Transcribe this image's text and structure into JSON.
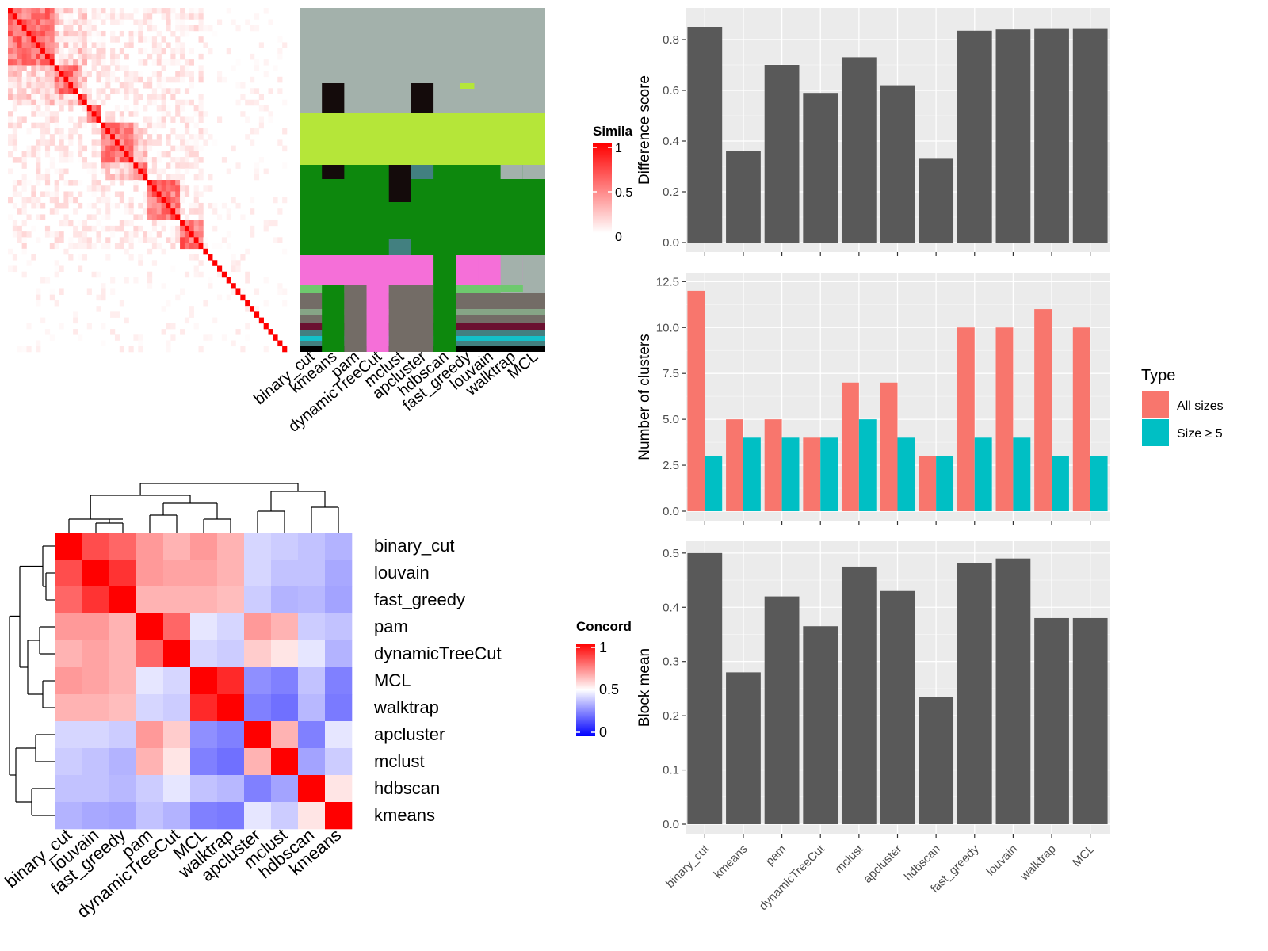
{
  "methods_top": [
    "binary_cut",
    "kmeans",
    "pam",
    "dynamicTreeCut",
    "mclust",
    "apcluster",
    "hdbscan",
    "fast_greedy",
    "louvain",
    "walktrap",
    "MCL"
  ],
  "similarity_legend": {
    "title": "Simila",
    "ticks": [
      "1",
      "0.5",
      "0"
    ]
  },
  "concordance_legend": {
    "title": "Concord",
    "ticks": [
      "1",
      "0.5",
      "0"
    ]
  },
  "concordance": {
    "type": "heatmap",
    "rows": [
      "binary_cut",
      "louvain",
      "fast_greedy",
      "pam",
      "dynamicTreeCut",
      "MCL",
      "walktrap",
      "apcluster",
      "mclust",
      "hdbscan",
      "kmeans"
    ],
    "cols": [
      "binary_cut",
      "louvain",
      "fast_greedy",
      "pam",
      "dynamicTreeCut",
      "MCL",
      "walktrap",
      "apcluster",
      "mclust",
      "hdbscan",
      "kmeans"
    ],
    "values": [
      [
        1.0,
        0.85,
        0.8,
        0.7,
        0.65,
        0.7,
        0.65,
        0.42,
        0.4,
        0.38,
        0.35
      ],
      [
        0.85,
        1.0,
        0.9,
        0.7,
        0.68,
        0.68,
        0.65,
        0.42,
        0.38,
        0.38,
        0.33
      ],
      [
        0.8,
        0.9,
        1.0,
        0.65,
        0.65,
        0.65,
        0.63,
        0.4,
        0.35,
        0.36,
        0.32
      ],
      [
        0.7,
        0.7,
        0.65,
        1.0,
        0.8,
        0.45,
        0.42,
        0.7,
        0.65,
        0.4,
        0.38
      ],
      [
        0.65,
        0.68,
        0.65,
        0.8,
        1.0,
        0.42,
        0.4,
        0.6,
        0.55,
        0.45,
        0.35
      ],
      [
        0.7,
        0.68,
        0.65,
        0.45,
        0.42,
        1.0,
        0.92,
        0.28,
        0.25,
        0.38,
        0.25
      ],
      [
        0.65,
        0.65,
        0.63,
        0.42,
        0.4,
        0.92,
        1.0,
        0.25,
        0.22,
        0.36,
        0.24
      ],
      [
        0.42,
        0.42,
        0.4,
        0.7,
        0.6,
        0.28,
        0.25,
        1.0,
        0.65,
        0.25,
        0.45
      ],
      [
        0.4,
        0.38,
        0.35,
        0.65,
        0.55,
        0.25,
        0.22,
        0.65,
        1.0,
        0.32,
        0.4
      ],
      [
        0.38,
        0.38,
        0.36,
        0.4,
        0.45,
        0.38,
        0.36,
        0.25,
        0.32,
        1.0,
        0.55
      ],
      [
        0.35,
        0.33,
        0.32,
        0.38,
        0.35,
        0.25,
        0.24,
        0.45,
        0.4,
        0.55,
        1.0
      ]
    ]
  },
  "chart_data": [
    {
      "type": "bar",
      "categories": [
        "binary_cut",
        "kmeans",
        "pam",
        "dynamicTreeCut",
        "mclust",
        "apcluster",
        "hdbscan",
        "fast_greedy",
        "louvain",
        "walktrap",
        "MCL"
      ],
      "values": [
        0.85,
        0.36,
        0.7,
        0.59,
        0.73,
        0.62,
        0.33,
        0.835,
        0.84,
        0.845,
        0.845
      ],
      "ylabel": "Difference score",
      "ylim": [
        0,
        0.9
      ],
      "yticks": [
        "0.0",
        "0.2",
        "0.4",
        "0.6",
        "0.8"
      ],
      "color": "#595959"
    },
    {
      "type": "bar",
      "categories": [
        "binary_cut",
        "kmeans",
        "pam",
        "dynamicTreeCut",
        "mclust",
        "apcluster",
        "hdbscan",
        "fast_greedy",
        "louvain",
        "walktrap",
        "MCL"
      ],
      "series": [
        {
          "name": "All sizes",
          "values": [
            12,
            5,
            5,
            4,
            7,
            7,
            3,
            10,
            10,
            11,
            10
          ],
          "color": "#F8766D"
        },
        {
          "name": "Size ≥ 5",
          "values": [
            3,
            4,
            4,
            4,
            5,
            4,
            3,
            4,
            4,
            3,
            3
          ],
          "color": "#00BFC4"
        }
      ],
      "ylabel": "Number of clusters",
      "ylim": [
        0,
        12.6
      ],
      "yticks": [
        "0.0",
        "2.5",
        "5.0",
        "7.5",
        "10.0",
        "12.5"
      ],
      "legend": {
        "title": "Type",
        "placement": "right"
      }
    },
    {
      "type": "bar",
      "categories": [
        "binary_cut",
        "kmeans",
        "pam",
        "dynamicTreeCut",
        "mclust",
        "apcluster",
        "hdbscan",
        "fast_greedy",
        "louvain",
        "walktrap",
        "MCL"
      ],
      "values": [
        0.5,
        0.28,
        0.42,
        0.365,
        0.475,
        0.43,
        0.235,
        0.482,
        0.49,
        0.38,
        0.38
      ],
      "ylabel": "Block mean",
      "ylim": [
        0,
        0.51
      ],
      "yticks": [
        "0.0",
        "0.1",
        "0.2",
        "0.3",
        "0.4",
        "0.5"
      ],
      "color": "#595959"
    }
  ]
}
